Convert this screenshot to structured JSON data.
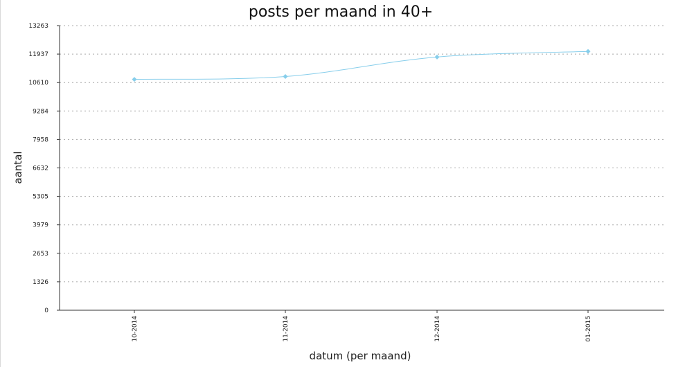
{
  "chart_data": {
    "type": "line",
    "title": "posts per maand in 40+",
    "xlabel": "datum (per maand)",
    "ylabel": "aantal",
    "categories": [
      "10-2014",
      "11-2014",
      "12-2014",
      "01-2015"
    ],
    "series": [
      {
        "values": [
          10760,
          10890,
          11800,
          12060
        ],
        "color": "#87ceeb"
      }
    ],
    "ylim": [
      0,
      13263
    ],
    "yticks": [
      0,
      1326,
      2653,
      3979,
      5305,
      6632,
      7958,
      9284,
      10610,
      11937,
      13263
    ],
    "grid": true,
    "legend": "none"
  }
}
